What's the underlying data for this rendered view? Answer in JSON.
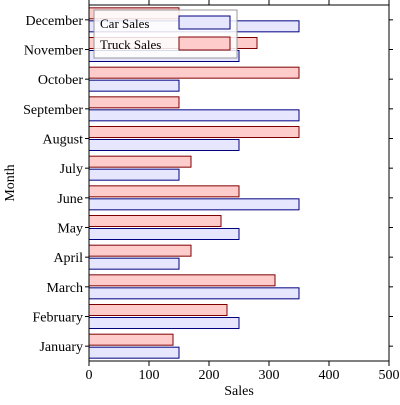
{
  "chart_data": {
    "type": "bar",
    "orientation": "horizontal",
    "xlabel": "Sales",
    "ylabel": "Month",
    "xlim": [
      0,
      500
    ],
    "x_ticks": [
      0,
      100,
      200,
      300,
      400,
      500
    ],
    "categories": [
      "January",
      "February",
      "March",
      "April",
      "May",
      "June",
      "July",
      "August",
      "September",
      "October",
      "November",
      "December"
    ],
    "series": [
      {
        "name": "Car Sales",
        "values": [
          150,
          250,
          350,
          150,
          250,
          350,
          150,
          250,
          350,
          150,
          250,
          350
        ],
        "fill": "#e6e6ff",
        "stroke": "#000080"
      },
      {
        "name": "Truck Sales",
        "values": [
          140,
          230,
          310,
          170,
          220,
          250,
          170,
          350,
          150,
          350,
          280,
          150
        ],
        "fill": "#ffcccc",
        "stroke": "#800000"
      }
    ],
    "legend_position": "top-left",
    "grid": false
  }
}
